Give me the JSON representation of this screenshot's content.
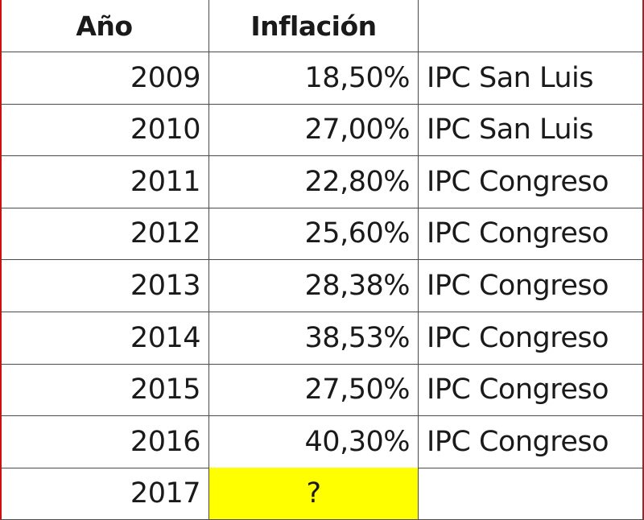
{
  "table": {
    "header": [
      "Año",
      "Inflación"
    ],
    "rows": [
      [
        "2009",
        "18,50%",
        "IPC San Luis"
      ],
      [
        "2010",
        "27,00%",
        "IPC San Luis"
      ],
      [
        "2011",
        "22,80%",
        "IPC Congreso"
      ],
      [
        "2012",
        "25,60%",
        "IPC Congreso"
      ],
      [
        "2013",
        "28,38%",
        "IPC Congreso"
      ],
      [
        "2014",
        "38,53%",
        "IPC Congreso"
      ],
      [
        "2015",
        "27,50%",
        "IPC Congreso"
      ],
      [
        "2016",
        "40,30%",
        "IPC Congreso"
      ],
      [
        "2017",
        "?"
      ]
    ]
  }
}
